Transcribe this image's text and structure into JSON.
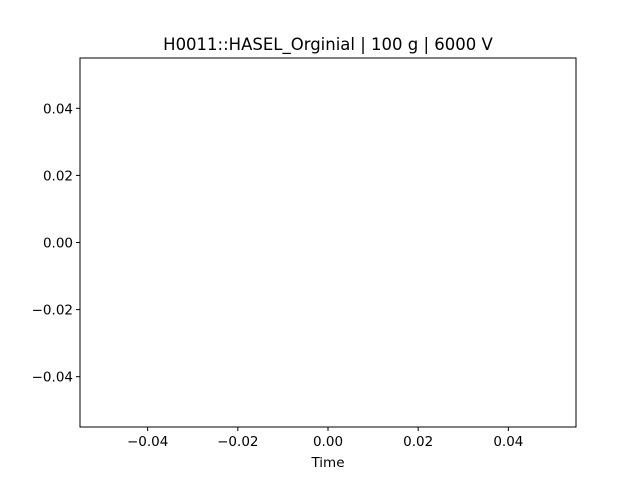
{
  "chart_data": {
    "type": "line",
    "title": "H0011::HASEL_Orginial | 100 g | 6000 V",
    "xlabel": "Time",
    "ylabel": "",
    "xlim": [
      -0.055,
      0.055
    ],
    "ylim": [
      -0.055,
      0.055
    ],
    "x_ticks": [
      -0.04,
      -0.02,
      0.0,
      0.02,
      0.04
    ],
    "x_tick_labels": [
      "−0.04",
      "−0.02",
      "0.00",
      "0.02",
      "0.04"
    ],
    "y_ticks": [
      -0.04,
      -0.02,
      0.0,
      0.02,
      0.04
    ],
    "y_tick_labels": [
      "−0.04",
      "−0.02",
      "0.00",
      "0.02",
      "0.04"
    ],
    "grid": false,
    "series": []
  }
}
